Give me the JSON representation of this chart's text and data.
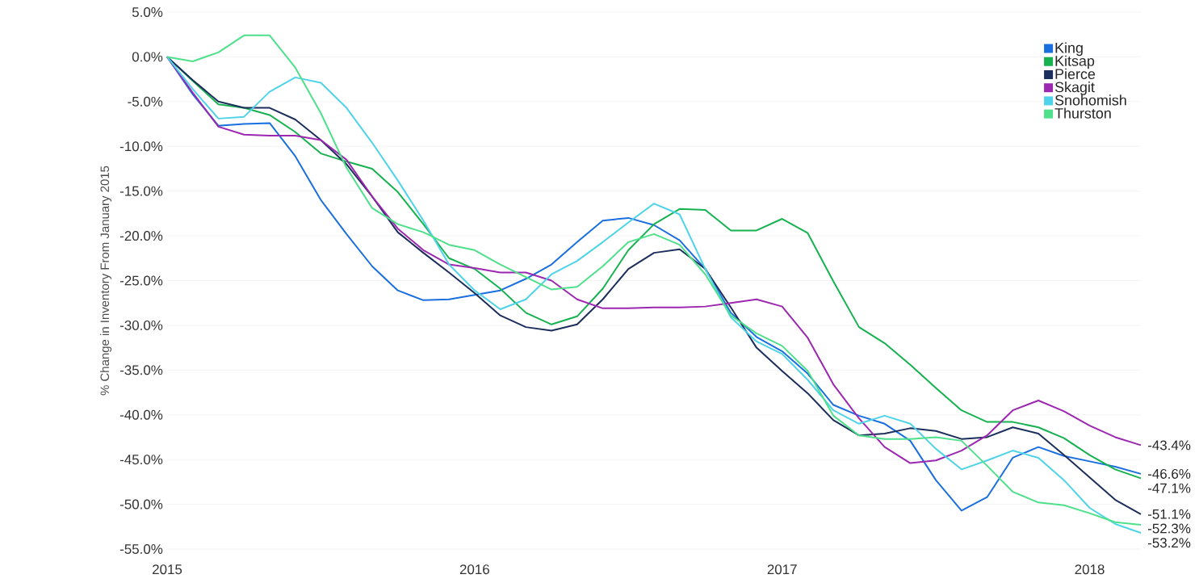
{
  "chart_data": {
    "type": "line",
    "ylabel": "% Change in Inventory From January 2015",
    "x": [
      "2015-01",
      "2015-02",
      "2015-03",
      "2015-04",
      "2015-05",
      "2015-06",
      "2015-07",
      "2015-08",
      "2015-09",
      "2015-10",
      "2015-11",
      "2015-12",
      "2016-01",
      "2016-02",
      "2016-03",
      "2016-04",
      "2016-05",
      "2016-06",
      "2016-07",
      "2016-08",
      "2016-09",
      "2016-10",
      "2016-11",
      "2016-12",
      "2017-01",
      "2017-02",
      "2017-03",
      "2017-04",
      "2017-05",
      "2017-06",
      "2017-07",
      "2017-08",
      "2017-09",
      "2017-10",
      "2017-11",
      "2017-12",
      "2018-01",
      "2018-02",
      "2018-03"
    ],
    "series": [
      {
        "name": "King",
        "color": "#1a6fe0",
        "values": [
          0,
          -4.2,
          -7.7,
          -7.5,
          -7.4,
          -11.1,
          -16.0,
          -19.8,
          -23.4,
          -26.1,
          -27.2,
          -27.1,
          -26.6,
          -26.1,
          -24.8,
          -23.2,
          -20.7,
          -18.3,
          -18.0,
          -18.8,
          -20.5,
          -23.7,
          -28.6,
          -31.3,
          -32.9,
          -35.4,
          -38.9,
          -40.1,
          -41.0,
          -42.9,
          -47.3,
          -50.7,
          -49.2,
          -44.8,
          -43.6,
          -44.6,
          -45.2,
          -45.8,
          -46.6
        ]
      },
      {
        "name": "Kitsap",
        "color": "#16b24f",
        "values": [
          0,
          -2.7,
          -5.3,
          -5.7,
          -6.5,
          -8.4,
          -10.8,
          -11.7,
          -12.5,
          -15.1,
          -18.7,
          -22.5,
          -23.7,
          -25.9,
          -28.6,
          -29.9,
          -29.0,
          -25.9,
          -21.6,
          -18.7,
          -17.0,
          -17.1,
          -19.4,
          -19.4,
          -18.1,
          -19.7,
          -25.1,
          -30.2,
          -32.0,
          -34.4,
          -37.0,
          -39.5,
          -40.8,
          -40.8,
          -41.4,
          -42.6,
          -44.5,
          -46.1,
          -47.1
        ]
      },
      {
        "name": "Pierce",
        "color": "#1c2e5c",
        "values": [
          0,
          -2.6,
          -5.0,
          -5.7,
          -5.7,
          -7.0,
          -9.3,
          -12.0,
          -15.6,
          -19.6,
          -21.9,
          -24.1,
          -26.4,
          -28.9,
          -30.2,
          -30.6,
          -29.9,
          -27.1,
          -23.7,
          -21.9,
          -21.5,
          -23.7,
          -28.0,
          -32.5,
          -35.1,
          -37.6,
          -40.6,
          -42.3,
          -42.1,
          -41.5,
          -41.8,
          -42.7,
          -42.5,
          -41.4,
          -42.1,
          -44.5,
          -47.0,
          -49.5,
          -51.1
        ]
      },
      {
        "name": "Skagit",
        "color": "#9c27b0",
        "values": [
          0,
          -4.0,
          -7.8,
          -8.7,
          -8.8,
          -8.8,
          -9.3,
          -11.5,
          -15.6,
          -19.2,
          -21.6,
          -23.2,
          -23.6,
          -24.1,
          -24.1,
          -25.0,
          -27.1,
          -28.1,
          -28.1,
          -28.0,
          -28.0,
          -27.9,
          -27.5,
          -27.1,
          -27.9,
          -31.4,
          -36.6,
          -40.4,
          -43.6,
          -45.4,
          -45.1,
          -44.0,
          -42.3,
          -39.5,
          -38.4,
          -39.6,
          -41.2,
          -42.5,
          -43.4
        ]
      },
      {
        "name": "Snohomish",
        "color": "#4fd3e8",
        "values": [
          0,
          -3.6,
          -6.9,
          -6.7,
          -3.9,
          -2.3,
          -2.9,
          -5.7,
          -9.6,
          -13.8,
          -18.3,
          -23.2,
          -26.1,
          -28.2,
          -27.1,
          -24.3,
          -22.8,
          -20.7,
          -18.5,
          -16.4,
          -17.6,
          -23.7,
          -29.1,
          -31.8,
          -33.2,
          -36.1,
          -39.5,
          -41.0,
          -40.1,
          -41.0,
          -43.8,
          -46.1,
          -45.1,
          -44.0,
          -44.8,
          -47.3,
          -50.4,
          -52.2,
          -53.2
        ]
      },
      {
        "name": "Thurston",
        "color": "#4ee08a",
        "values": [
          0,
          -0.5,
          0.5,
          2.4,
          2.4,
          -1.2,
          -6.3,
          -12.4,
          -16.9,
          -18.7,
          -19.6,
          -21.0,
          -21.6,
          -23.2,
          -24.6,
          -26.0,
          -25.7,
          -23.4,
          -20.7,
          -19.8,
          -21.0,
          -24.3,
          -28.9,
          -30.9,
          -32.3,
          -35.1,
          -40.1,
          -42.3,
          -42.7,
          -42.7,
          -42.5,
          -42.9,
          -45.7,
          -48.6,
          -49.8,
          -50.1,
          -51.0,
          -52.0,
          -52.3
        ]
      }
    ],
    "xlim": [
      "2015-01",
      "2018-03"
    ],
    "xticks": [
      "2015",
      "2016",
      "2017",
      "2018"
    ],
    "ylim": [
      -55,
      5
    ],
    "yticks": [
      {
        "value": 5,
        "label": "5.0%"
      },
      {
        "value": 0,
        "label": "0.0%"
      },
      {
        "value": -5,
        "label": "-5.0%"
      },
      {
        "value": -10,
        "label": "-10.0%"
      },
      {
        "value": -15,
        "label": "-15.0%"
      },
      {
        "value": -20,
        "label": "-20.0%"
      },
      {
        "value": -25,
        "label": "-25.0%"
      },
      {
        "value": -30,
        "label": "-30.0%"
      },
      {
        "value": -35,
        "label": "-35.0%"
      },
      {
        "value": -40,
        "label": "-40.0%"
      },
      {
        "value": -45,
        "label": "-45.0%"
      },
      {
        "value": -50,
        "label": "-50.0%"
      },
      {
        "value": -55,
        "label": "-55.0%"
      }
    ],
    "annotations": [
      {
        "text": "-43.4%",
        "x": "2018-03",
        "y": -43.4
      },
      {
        "text": "-46.6%",
        "x": "2018-03",
        "y": -46.6
      },
      {
        "text": "-47.1%",
        "x": "2018-03",
        "y": -47.1
      },
      {
        "text": "-51.1%",
        "x": "2018-03",
        "y": -51.1
      },
      {
        "text": "-52.3%",
        "x": "2018-03",
        "y": -52.3
      },
      {
        "text": "-53.2%",
        "x": "2018-03",
        "y": -53.2
      }
    ],
    "grid": "y",
    "legend": "top right",
    "marker": "none",
    "line_style": "solid"
  }
}
